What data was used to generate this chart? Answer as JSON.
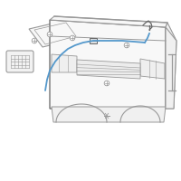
{
  "bg_color": "#ffffff",
  "line_color": "#999999",
  "cable_color": "#5599cc",
  "dark_line": "#666666",
  "fig_width": 2.0,
  "fig_height": 2.0,
  "dpi": 100
}
